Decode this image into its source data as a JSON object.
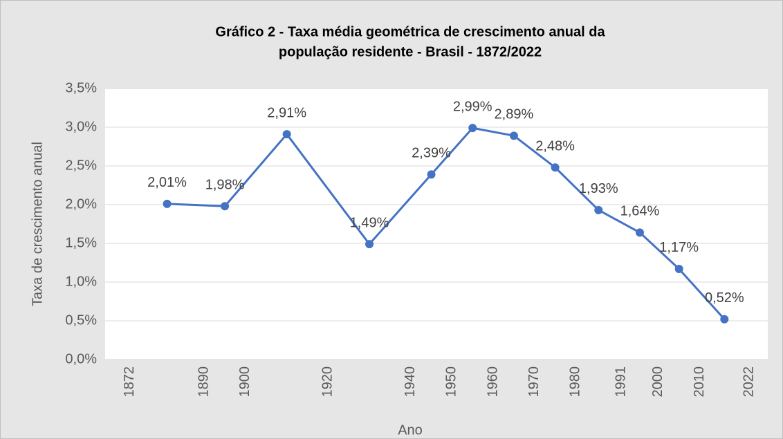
{
  "chart_data": {
    "type": "line",
    "title": [
      "Gráfico 2 - Taxa média geométrica de crescimento anual da",
      "população residente - Brasil - 1872/2022"
    ],
    "x_label": "Ano",
    "y_label": "Taxa de crescimento anual",
    "x": [
      1881,
      1895,
      1910,
      1930,
      1945,
      1955,
      1965,
      1975,
      1985.5,
      1995.5,
      2005,
      2016
    ],
    "series": [
      {
        "name": "Taxa de crescimento anual",
        "color": "#4472c4",
        "values": [
          2.01,
          1.98,
          2.91,
          1.49,
          2.39,
          2.99,
          2.89,
          2.48,
          1.93,
          1.64,
          1.17,
          0.52
        ],
        "value_labels": [
          "2,01%",
          "1,98%",
          "2,91%",
          "1,49%",
          "2,39%",
          "2,99%",
          "2,89%",
          "2,48%",
          "1,93%",
          "1,64%",
          "1,17%",
          "0,52%"
        ]
      }
    ],
    "xlim": [
      1866,
      2026.5
    ],
    "xticks": [
      1872,
      1890,
      1900,
      1920,
      1940,
      1950,
      1960,
      1970,
      1980,
      1991,
      2000,
      2010,
      2022
    ],
    "ylim": [
      0,
      3.5
    ],
    "yticks": [
      {
        "value": 0,
        "label": "0,0%"
      },
      {
        "value": 0.5,
        "label": "0,5%"
      },
      {
        "value": 1,
        "label": "1,0%"
      },
      {
        "value": 1.5,
        "label": "1,5%"
      },
      {
        "value": 2,
        "label": "2,0%"
      },
      {
        "value": 2.5,
        "label": "2,5%"
      },
      {
        "value": 3,
        "label": "3,0%"
      },
      {
        "value": 3.5,
        "label": "3,5%"
      }
    ],
    "grid": true
  }
}
